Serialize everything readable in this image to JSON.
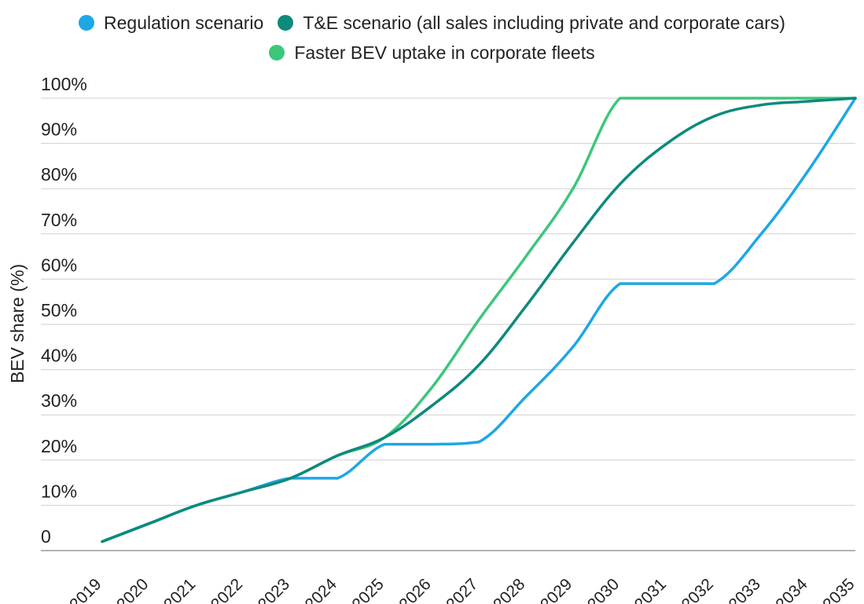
{
  "chart_data": {
    "type": "line",
    "title": "",
    "xlabel": "",
    "ylabel": "BEV share (%)",
    "x": [
      "2019",
      "2020",
      "2021",
      "2022",
      "2023",
      "2024",
      "2025",
      "2026",
      "2027",
      "2028",
      "2029",
      "2030",
      "2031",
      "2032",
      "2033",
      "2034",
      "2035"
    ],
    "y_ticks": [
      "0",
      "10%",
      "20%",
      "30%",
      "40%",
      "50%",
      "60%",
      "70%",
      "80%",
      "90%",
      "100%"
    ],
    "ylim": [
      0,
      100
    ],
    "grid": true,
    "legend_position": "top",
    "series": [
      {
        "name": "Regulation scenario",
        "color": "#1ea7e6",
        "values": [
          2,
          6,
          10,
          13,
          16,
          16,
          23.5,
          23.5,
          24,
          34,
          45,
          59,
          59,
          59,
          70,
          84,
          100
        ]
      },
      {
        "name": "T&E scenario (all sales including private and corporate cars)",
        "color": "#0d8a7b",
        "values": [
          2,
          6,
          10,
          13,
          16,
          21,
          25,
          32,
          41,
          54,
          68,
          81,
          90,
          96,
          98.5,
          99.3,
          100
        ]
      },
      {
        "name": "Faster BEV uptake in corporate fleets",
        "color": "#3cc77a",
        "values": [
          2,
          6,
          10,
          13,
          16,
          21,
          25,
          36,
          51,
          65,
          80,
          100,
          100,
          100,
          100,
          100,
          100
        ]
      }
    ]
  }
}
